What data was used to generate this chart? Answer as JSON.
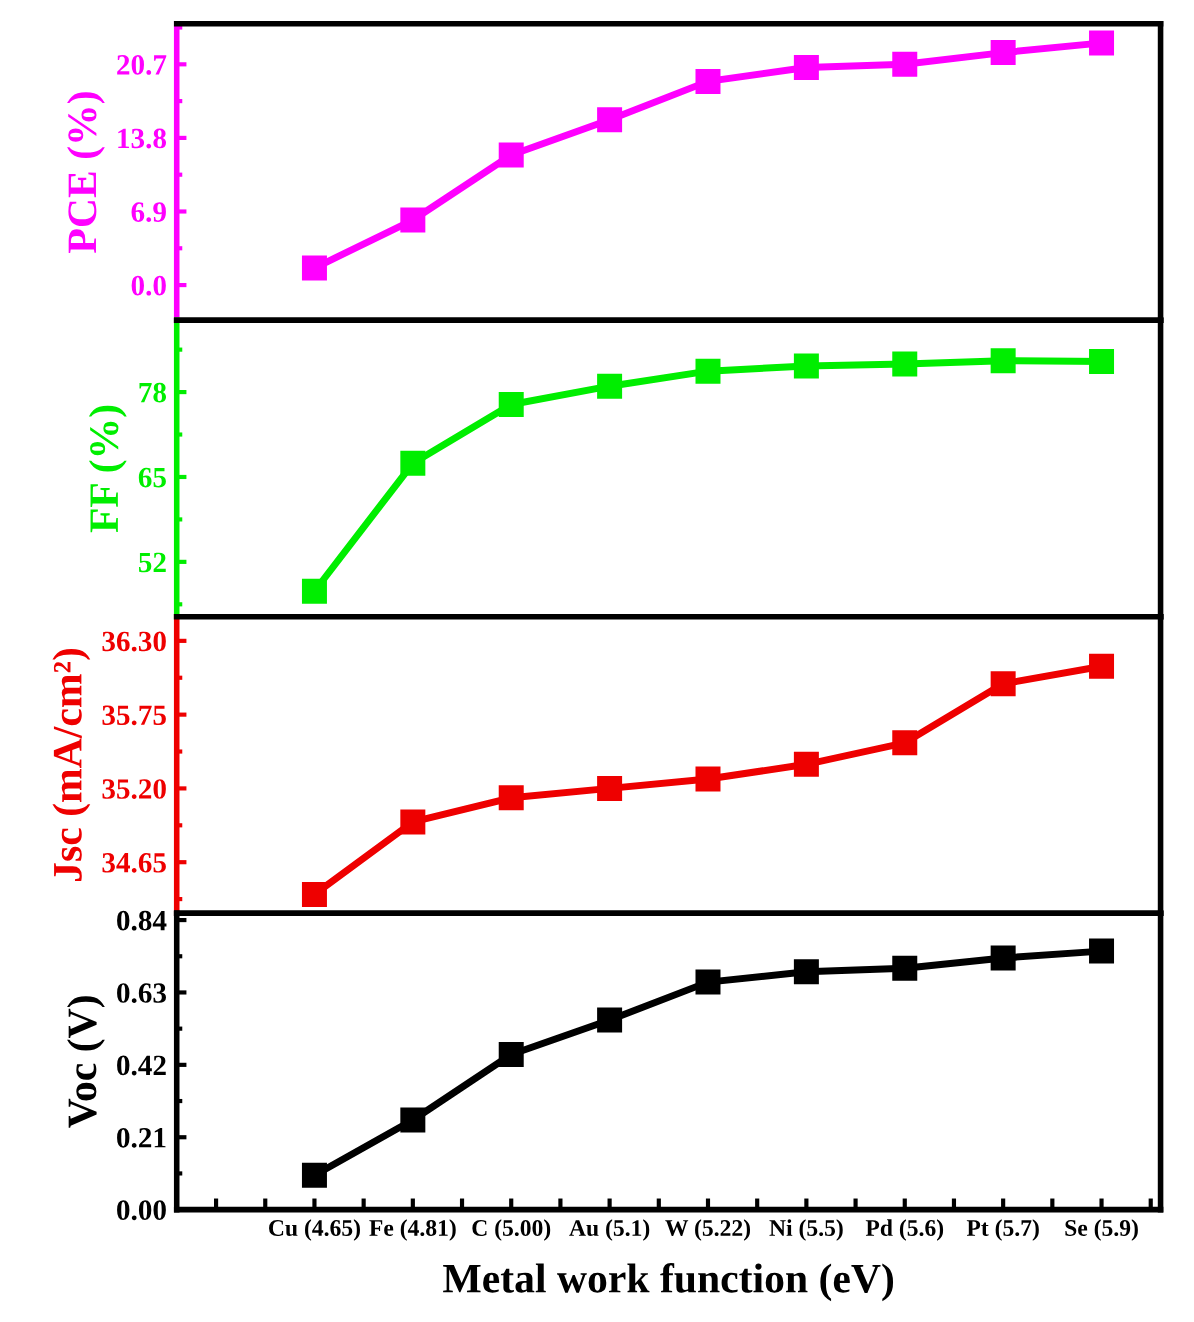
{
  "chart_data": [
    {
      "type": "line",
      "ylabel": "PCE (%)",
      "categories": [
        null,
        null,
        null,
        null,
        null,
        null,
        null,
        null,
        null
      ],
      "series": [
        {
          "color": "#ff00ff",
          "values": [
            1.6,
            6.1,
            12.2,
            15.5,
            19.1,
            20.4,
            20.7,
            21.8,
            22.7
          ]
        }
      ],
      "ylim": [
        -3.3,
        24.5
      ],
      "yticks": [
        {
          "value": 0,
          "label": "0.0"
        },
        6.9,
        13.8,
        20.7
      ],
      "marker": "square",
      "line_style": "solid",
      "tick_labels": "y"
    },
    {
      "type": "line",
      "ylabel": "FF (%)",
      "categories": [
        null,
        null,
        null,
        null,
        null,
        null,
        null,
        null,
        null
      ],
      "series": [
        {
          "color": "#00ee00",
          "values": [
            47.5,
            67.1,
            76.1,
            78.9,
            81.2,
            82.0,
            82.3,
            82.8,
            82.7
          ]
        }
      ],
      "ylim": [
        43.6,
        89
      ],
      "yticks": [
        52,
        65,
        78
      ],
      "marker": "square",
      "line_style": "solid",
      "tick_labels": "y"
    },
    {
      "type": "line",
      "ylabel": "Jsc (mA/cm²)",
      "categories": [
        null,
        null,
        null,
        null,
        null,
        null,
        null,
        null,
        null
      ],
      "series": [
        {
          "color": "#ee0000",
          "values": [
            34.41,
            34.95,
            35.13,
            35.2,
            35.27,
            35.38,
            35.54,
            35.98,
            36.11
          ]
        }
      ],
      "ylim": [
        34.27,
        36.48
      ],
      "yticks": [
        34.65,
        {
          "value": 35.2,
          "label": "35.20"
        },
        35.75,
        {
          "value": 36.3,
          "label": "36.30"
        }
      ],
      "marker": "square",
      "line_style": "solid",
      "tick_labels": "y"
    },
    {
      "type": "line",
      "ylabel": "Voc (V)",
      "xlabel": "Metal work function (eV)",
      "categories": [
        "Cu (4.65)",
        "Fe (4.81)",
        "C (5.00)",
        "Au (5.1)",
        "W (5.22)",
        "Ni (5.5)",
        "Pd (5.6)",
        "Pt (5.7)",
        "Se (5.9)"
      ],
      "series": [
        {
          "color": "#000000",
          "values": [
            0.1,
            0.26,
            0.45,
            0.55,
            0.66,
            0.69,
            0.7,
            0.73,
            0.75
          ]
        }
      ],
      "ylim": [
        0.0,
        0.86
      ],
      "yticks": [
        {
          "value": 0,
          "label": "0.00"
        },
        0.21,
        0.42,
        0.63,
        0.84
      ],
      "marker": "square",
      "line_style": "solid"
    }
  ]
}
